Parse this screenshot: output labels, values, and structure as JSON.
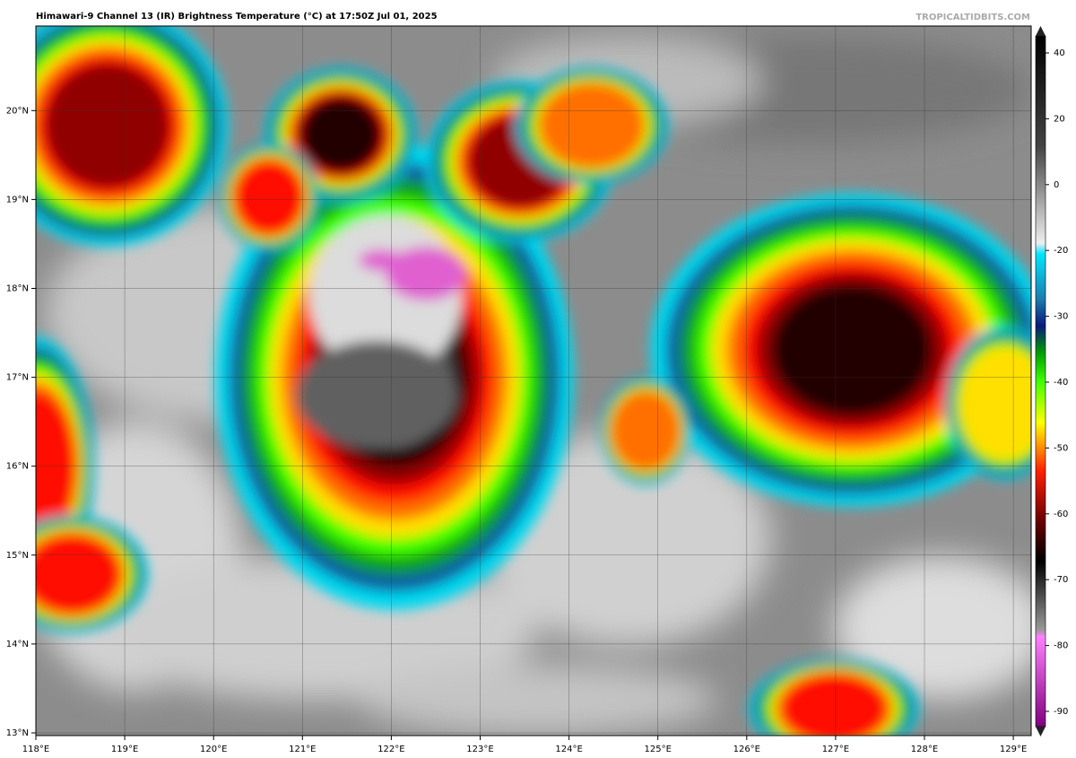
{
  "header": {
    "title": "Himawari-9 Channel 13 (IR) Brightness Temperature (°C) at 17:50Z Jul 01, 2025",
    "source": "TROPICALTIDBITS.COM"
  },
  "map": {
    "lon_ticks": [
      {
        "value": 118,
        "label": "118°E"
      },
      {
        "value": 119,
        "label": "119°E"
      },
      {
        "value": 120,
        "label": "120°E"
      },
      {
        "value": 121,
        "label": "121°E"
      },
      {
        "value": 122,
        "label": "122°E"
      },
      {
        "value": 123,
        "label": "123°E"
      },
      {
        "value": 124,
        "label": "124°E"
      },
      {
        "value": 125,
        "label": "125°E"
      },
      {
        "value": 126,
        "label": "126°E"
      },
      {
        "value": 127,
        "label": "127°E"
      },
      {
        "value": 128,
        "label": "128°E"
      },
      {
        "value": 129,
        "label": "129°E"
      }
    ],
    "lat_ticks": [
      {
        "value": 13,
        "label": "13°N"
      },
      {
        "value": 14,
        "label": "14°N"
      },
      {
        "value": 15,
        "label": "15°N"
      },
      {
        "value": 16,
        "label": "16°N"
      },
      {
        "value": 17,
        "label": "17°N"
      },
      {
        "value": 18,
        "label": "18°N"
      },
      {
        "value": 19,
        "label": "19°N"
      },
      {
        "value": 20,
        "label": "20°N"
      }
    ]
  },
  "colorbar": {
    "ticks": [
      40,
      20,
      0,
      -20,
      -30,
      -40,
      -50,
      -60,
      -70,
      -80,
      -90
    ]
  }
}
